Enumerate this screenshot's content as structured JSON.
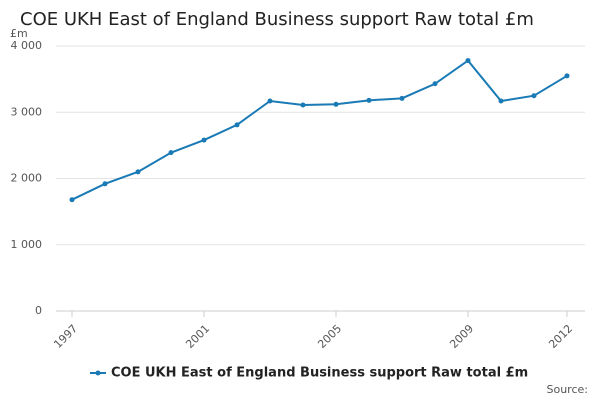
{
  "chart_data": {
    "type": "line",
    "title": "COE UKH East of England Business support Raw total £m",
    "y_label": "£m",
    "source": "Source:",
    "x": [
      1997,
      1998,
      1999,
      2000,
      2001,
      2002,
      2003,
      2004,
      2005,
      2006,
      2007,
      2008,
      2009,
      2010,
      2011,
      2012
    ],
    "series": [
      {
        "name": "COE UKH East of England Business support Raw total £m",
        "color": "#1a7ab5",
        "values": [
          1680,
          1920,
          2100,
          2390,
          2580,
          2810,
          3170,
          3110,
          3120,
          3180,
          3210,
          3430,
          3780,
          3170,
          3250,
          3550
        ]
      }
    ],
    "xlim": [
      1997,
      2012
    ],
    "xticks": [
      1997,
      2001,
      2005,
      2009,
      2012
    ],
    "ylim": [
      0,
      4000
    ],
    "yticks": [
      0,
      {
        "value": 1000,
        "label": "1 000"
      },
      {
        "value": 2000,
        "label": "2 000"
      },
      {
        "value": 3000,
        "label": "3 000"
      },
      {
        "value": 4000,
        "label": "4 000"
      }
    ],
    "grid": true,
    "legend": "bottom"
  }
}
